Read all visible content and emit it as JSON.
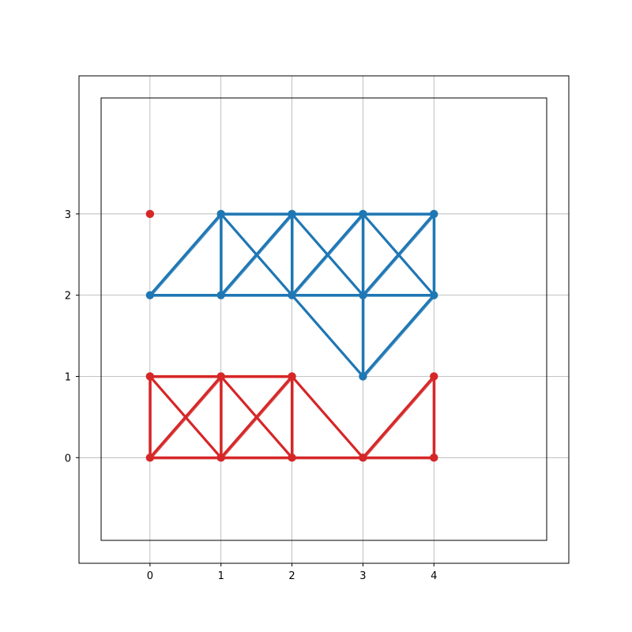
{
  "chart_data": {
    "type": "scatter",
    "title": "",
    "xlabel": "",
    "ylabel": "",
    "xlim": [
      -1,
      5.9
    ],
    "ylim": [
      -1.3,
      4.7
    ],
    "x_ticks": [
      0,
      1,
      2,
      3,
      4
    ],
    "y_ticks": [
      0,
      1,
      2,
      3
    ],
    "grid": true,
    "series": [
      {
        "color": "#1f77b4",
        "nodes": [
          [
            0,
            2
          ],
          [
            1,
            2
          ],
          [
            2,
            2
          ],
          [
            3,
            2
          ],
          [
            4,
            2
          ],
          [
            1,
            3
          ],
          [
            2,
            3
          ],
          [
            3,
            3
          ],
          [
            4,
            3
          ],
          [
            3,
            1
          ]
        ],
        "edges": [
          [
            [
              0,
              2
            ],
            [
              1,
              2
            ]
          ],
          [
            [
              1,
              2
            ],
            [
              2,
              2
            ]
          ],
          [
            [
              2,
              2
            ],
            [
              3,
              2
            ]
          ],
          [
            [
              3,
              2
            ],
            [
              4,
              2
            ]
          ],
          [
            [
              1,
              3
            ],
            [
              2,
              3
            ]
          ],
          [
            [
              2,
              3
            ],
            [
              3,
              3
            ]
          ],
          [
            [
              3,
              3
            ],
            [
              4,
              3
            ]
          ],
          [
            [
              1,
              2
            ],
            [
              1,
              3
            ]
          ],
          [
            [
              2,
              2
            ],
            [
              2,
              3
            ]
          ],
          [
            [
              3,
              2
            ],
            [
              3,
              3
            ]
          ],
          [
            [
              4,
              2
            ],
            [
              4,
              3
            ]
          ],
          [
            [
              0,
              2
            ],
            [
              1,
              3
            ]
          ],
          [
            [
              1,
              2
            ],
            [
              2,
              3
            ]
          ],
          [
            [
              1,
              3
            ],
            [
              2,
              2
            ]
          ],
          [
            [
              2,
              2
            ],
            [
              3,
              3
            ]
          ],
          [
            [
              2,
              3
            ],
            [
              3,
              2
            ]
          ],
          [
            [
              3,
              2
            ],
            [
              4,
              3
            ]
          ],
          [
            [
              3,
              3
            ],
            [
              4,
              2
            ]
          ],
          [
            [
              2,
              2
            ],
            [
              3,
              1
            ]
          ],
          [
            [
              3,
              1
            ],
            [
              4,
              2
            ]
          ],
          [
            [
              3,
              1
            ],
            [
              3,
              2
            ]
          ]
        ]
      },
      {
        "color": "#d62728",
        "nodes": [
          [
            0,
            3
          ],
          [
            0,
            0
          ],
          [
            1,
            0
          ],
          [
            2,
            0
          ],
          [
            3,
            0
          ],
          [
            4,
            0
          ],
          [
            0,
            1
          ],
          [
            1,
            1
          ],
          [
            2,
            1
          ],
          [
            4,
            1
          ]
        ],
        "edges": [
          [
            [
              0,
              0
            ],
            [
              1,
              0
            ]
          ],
          [
            [
              1,
              0
            ],
            [
              2,
              0
            ]
          ],
          [
            [
              2,
              0
            ],
            [
              3,
              0
            ]
          ],
          [
            [
              3,
              0
            ],
            [
              4,
              0
            ]
          ],
          [
            [
              0,
              1
            ],
            [
              1,
              1
            ]
          ],
          [
            [
              1,
              1
            ],
            [
              2,
              1
            ]
          ],
          [
            [
              0,
              0
            ],
            [
              0,
              1
            ]
          ],
          [
            [
              1,
              0
            ],
            [
              1,
              1
            ]
          ],
          [
            [
              2,
              0
            ],
            [
              2,
              1
            ]
          ],
          [
            [
              4,
              0
            ],
            [
              4,
              1
            ]
          ],
          [
            [
              0,
              0
            ],
            [
              1,
              1
            ]
          ],
          [
            [
              0,
              1
            ],
            [
              1,
              0
            ]
          ],
          [
            [
              1,
              0
            ],
            [
              2,
              1
            ]
          ],
          [
            [
              1,
              1
            ],
            [
              2,
              0
            ]
          ],
          [
            [
              2,
              1
            ],
            [
              3,
              0
            ]
          ],
          [
            [
              3,
              0
            ],
            [
              4,
              1
            ]
          ]
        ]
      }
    ]
  }
}
